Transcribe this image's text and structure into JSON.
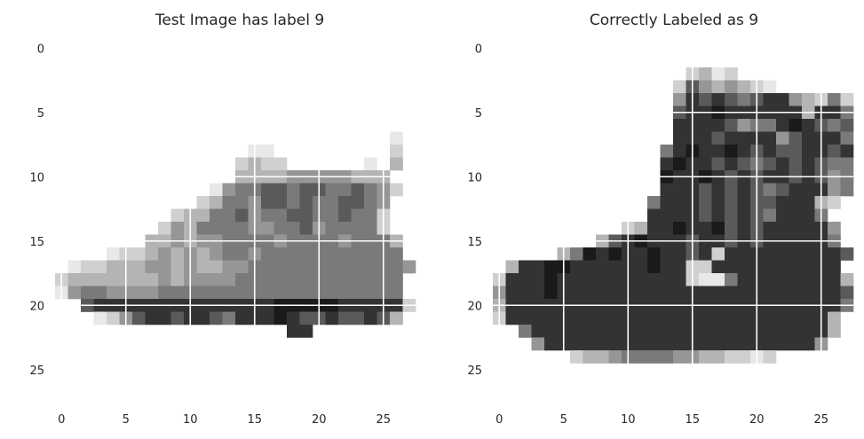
{
  "chart_data": [
    {
      "type": "heatmap",
      "title": "Test Image has label 9",
      "xlabel": "",
      "ylabel": "",
      "xlim": [
        -0.5,
        27.5
      ],
      "ylim": [
        27.5,
        -0.5
      ],
      "xticks": [
        0,
        5,
        10,
        15,
        20,
        25
      ],
      "yticks": [
        0,
        5,
        10,
        15,
        20,
        25
      ],
      "colormap": "gray_r",
      "grid": true,
      "rows": [
        "............................",
        "............................",
        "............................",
        "............................",
        "............................",
        "............................",
        "............................",
        "..........................a.",
        "...............aa.........b.",
        "..............bcbb......a.c.",
        "..............ccccdddddccc..",
        "............adeeffeffeefedb.",
        "...........bceedffefeeffed..",
        ".........bcceefdeeffeefeeb..",
        "........bdceeeeddeefdeeeeb..",
        ".......ccdcddeeeedeeeedeeec.",
        "....abbcdcdcdeedeeeeeeeeeee.",
        ".abbcccddcdccddeeeeeeeeeeeed.",
        "bcccccccdcddddeeeeeeeeeeeee.",
        "adeeddddeeeeeeeeeeeeeeeeeee.",
        "..fgggggggggggggghhhhhgggggb",
        "...abdfggfggfeggghgffgffgfc.",
        "..................gg.......",
        "............................",
        "............................",
        "............................",
        "............................",
        "............................"
      ]
    },
    {
      "type": "heatmap",
      "title": "Correctly Labeled as 9",
      "xlabel": "",
      "ylabel": "",
      "xlim": [
        -0.5,
        27.5
      ],
      "ylim": [
        27.5,
        -0.5
      ],
      "xticks": [
        0,
        5,
        10,
        15,
        20,
        25
      ],
      "yticks": [
        0,
        5,
        10,
        15,
        20,
        25
      ],
      "colormap": "gray_r",
      "grid": true,
      "rows": [
        "............................",
        "............................",
        "...............bcab.........",
        "..............bfdcdcba......",
        "..............dgfgfefggdcbeb",
        "..............fgghggggggcgge",
        "..............ggggfdeeghgfef",
        "..............gggfggggdfggge",
        ".............eghgghgfgffggfg",
        ".............ghggfgfefgfgfee",
        ".............hgghgfgfggfgfde",
        ".............gggfgfgfefgggde",
        "............egggfgfgffgggcb.",
        "............ggggfgfgfeggge..",
        "..........bcgghgghfgfgggggd.",
        "........cfghgggfggfgfggggge.",
        ".....cehghgghggfgbgggggggggf",
        ".cgghhgggggghggbbgggggggggg.",
        "bggghggggggggggbaaeggggggggc",
        "dggghggggggggggggggggggggggf",
        "cgggggggggggggggggggggggggge",
        "bgggggggggggggggggggggggggc.",
        "..egggggggggggggggggggggggc.",
        "...dgggggggggggggggggggggd..",
        "......bccdeeeeddccbbab......",
        "............................",
        "............................",
        "............................"
      ]
    }
  ]
}
